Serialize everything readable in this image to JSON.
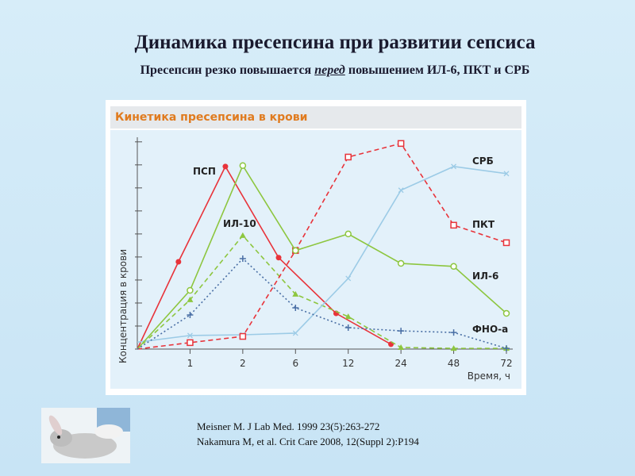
{
  "slide": {
    "title": "Динамика пресепсина при развитии сепсиса",
    "subtitle": [
      "Пресепсин резко повышается ",
      "перед",
      " повышением ИЛ-6, ПКТ и СРБ"
    ],
    "references": [
      "Meisner M. J Lab Med. 1999 23(5):263-272",
      "Nakamura M, et al. Crit Care 2008, 12(Suppl 2):P194"
    ]
  },
  "chart_data": {
    "type": "line",
    "title": "Кинетика пресепсина в крови",
    "y_label": "Концентрация в крови",
    "x_label": "Время, ч",
    "xlim": [
      0,
      7
    ],
    "xticks": [
      {
        "value": 1,
        "label": "1"
      },
      {
        "value": 2,
        "label": "2"
      },
      {
        "value": 3,
        "label": "6"
      },
      {
        "value": 4,
        "label": "12"
      },
      {
        "value": 5,
        "label": "24"
      },
      {
        "value": 6,
        "label": "48"
      },
      {
        "value": 7,
        "label": "72"
      }
    ],
    "ylim": [
      0,
      9.2
    ],
    "yticks": [
      0,
      1,
      2,
      3,
      4,
      5,
      6,
      7,
      8,
      9
    ],
    "series": [
      {
        "name": "ПСП",
        "color": "#e8333a",
        "dash": "solid",
        "marker": "filled-circle",
        "x": [
          0,
          0.78,
          1.67,
          2.68,
          3.77,
          4.81
        ],
        "values": [
          0,
          3.79,
          7.93,
          3.97,
          1.55,
          0.21
        ]
      },
      {
        "name": "ИЛ-10",
        "color": "#8dc63f",
        "dash": "dashed",
        "marker": "triangle",
        "x": [
          0,
          1,
          2,
          3,
          4,
          5,
          6,
          7
        ],
        "values": [
          0,
          2.14,
          4.93,
          2.38,
          1.41,
          0.07,
          0.03,
          0.03
        ]
      },
      {
        "name": "СРБ",
        "color": "#9ccbe6",
        "dash": "solid",
        "marker": "x",
        "x": [
          0,
          1,
          2,
          3,
          4,
          5,
          6,
          7
        ],
        "values": [
          0.3,
          0.59,
          0.62,
          0.69,
          3.07,
          6.9,
          7.93,
          7.62
        ]
      },
      {
        "name": "ПКТ",
        "color": "#e8333a",
        "dash": "dashed",
        "marker": "square",
        "x": [
          0,
          1,
          2,
          3,
          4,
          5,
          6,
          7
        ],
        "values": [
          0,
          0.28,
          0.55,
          4.28,
          8.34,
          8.93,
          5.38,
          4.62
        ]
      },
      {
        "name": "ИЛ-6",
        "color": "#8dc63f",
        "dash": "solid",
        "marker": "circle",
        "x": [
          0,
          1,
          2,
          3,
          4,
          5,
          6,
          7
        ],
        "values": [
          0,
          2.55,
          7.97,
          4.28,
          5.0,
          3.72,
          3.59,
          1.55
        ]
      },
      {
        "name": "ФНО-а",
        "color": "#4a6fa5",
        "dash": "dotted",
        "marker": "plus",
        "x": [
          0,
          1,
          2,
          3,
          4,
          5,
          6,
          7
        ],
        "values": [
          0,
          1.48,
          3.93,
          1.79,
          0.93,
          0.79,
          0.72,
          0.03
        ]
      }
    ]
  }
}
